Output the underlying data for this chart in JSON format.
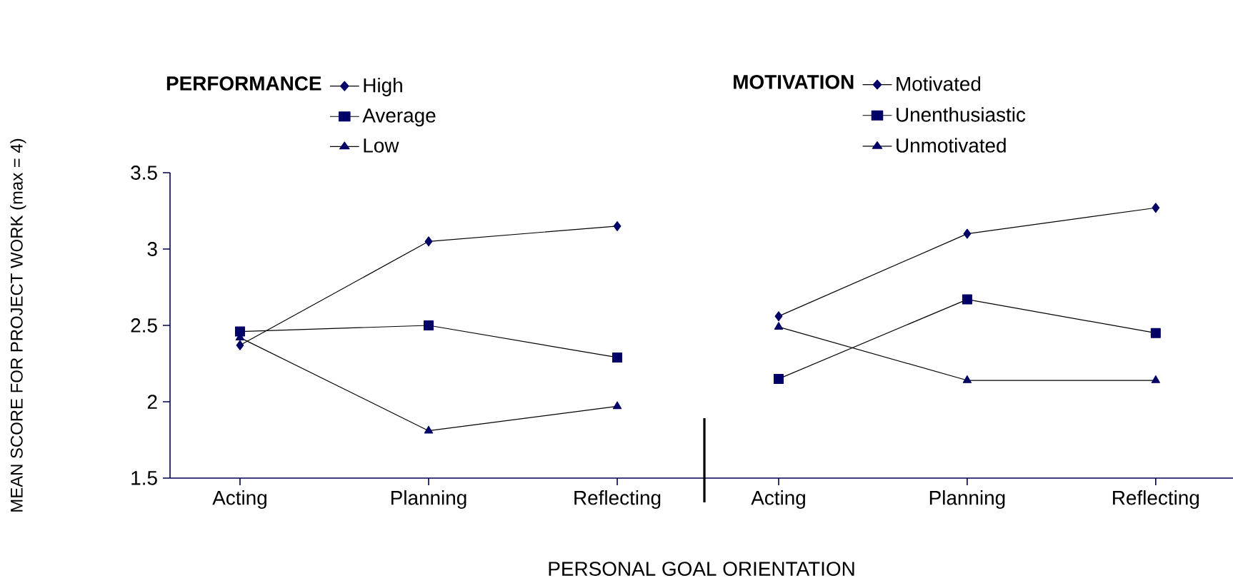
{
  "chart_data": [
    {
      "type": "line",
      "ylabel": "MEAN SCORE FOR PROJECT WORK (max = 4)",
      "xlabel": "PERSONAL GOAL ORIENTATION",
      "legend_title": "PERFORMANCE",
      "legend": "top",
      "categories": [
        "Acting",
        "Planning",
        "Reflecting"
      ],
      "ylim": [
        1.5,
        3.5
      ],
      "yticks": [
        1.5,
        2,
        2.5,
        3,
        3.5
      ],
      "series": [
        {
          "name": "High",
          "color": "#000066",
          "marker": "diamond",
          "values": [
            2.37,
            3.05,
            3.15
          ]
        },
        {
          "name": "Average",
          "color": "#000066",
          "marker": "square",
          "values": [
            2.46,
            2.5,
            2.29
          ]
        },
        {
          "name": "Low",
          "color": "#000066",
          "marker": "triangle",
          "values": [
            2.42,
            1.81,
            1.97
          ]
        }
      ]
    },
    {
      "type": "line",
      "legend_title": "MOTIVATION",
      "legend": "top",
      "tick_labels": "x",
      "categories": [
        "Acting",
        "Planning",
        "Reflecting"
      ],
      "ylim": [
        1.5,
        3.5
      ],
      "yticks": [
        1.5,
        2,
        2.5,
        3,
        3.5
      ],
      "series": [
        {
          "name": "Motivated",
          "color": "#000066",
          "marker": "diamond",
          "values": [
            2.56,
            3.1,
            3.27
          ]
        },
        {
          "name": "Unenthusiastic",
          "color": "#000066",
          "marker": "square",
          "values": [
            2.15,
            2.67,
            2.45
          ]
        },
        {
          "name": "Unmotivated",
          "color": "#000066",
          "marker": "triangle",
          "values": [
            2.49,
            2.14,
            2.14
          ]
        }
      ]
    }
  ]
}
